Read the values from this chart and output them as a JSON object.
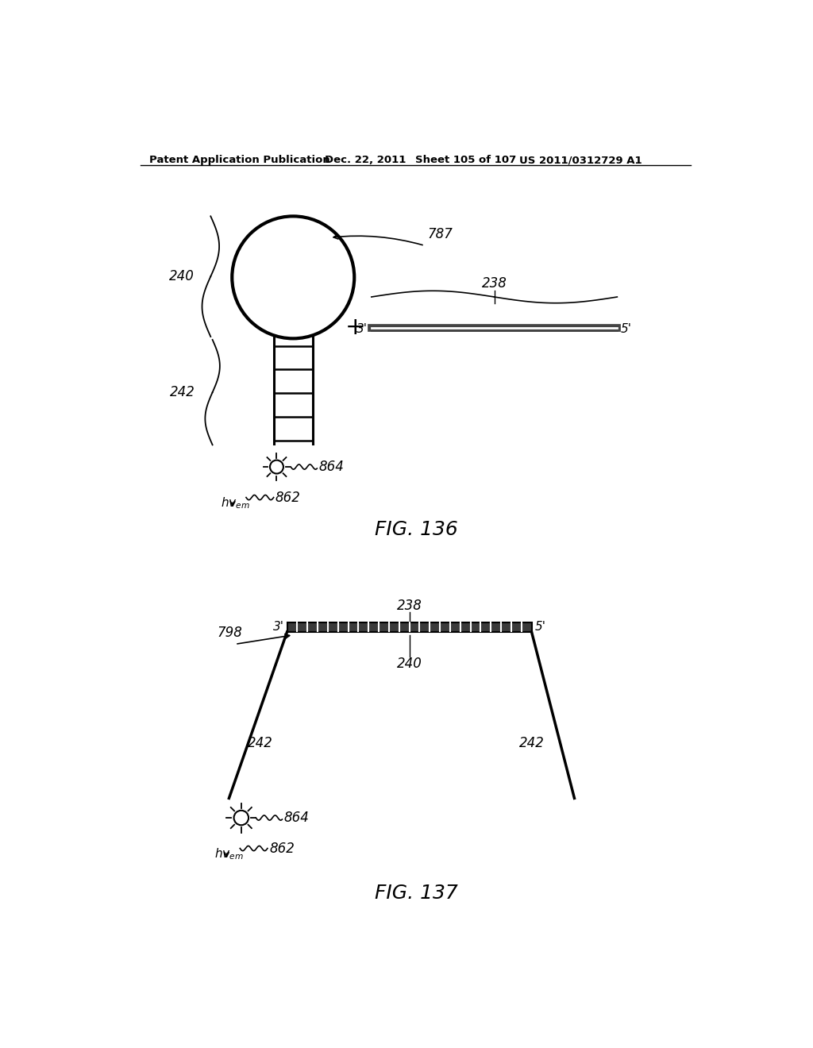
{
  "bg_color": "#ffffff",
  "header_text": "Patent Application Publication",
  "header_date": "Dec. 22, 2011",
  "header_sheet": "Sheet 105 of 107",
  "header_patent": "US 2011/0312729 A1",
  "fig136_title": "FIG. 136",
  "fig137_title": "FIG. 137",
  "label_240_fig136": "240",
  "label_242_fig136": "242",
  "label_787": "787",
  "label_238_fig136": "238",
  "label_864_fig136": "864",
  "label_862_fig136": "862",
  "label_798": "798",
  "label_238_fig137": "238",
  "label_240_fig137": "240",
  "label_242L_fig137": "242",
  "label_242R_fig137": "242",
  "label_864_fig137": "864",
  "label_862_fig137": "862"
}
